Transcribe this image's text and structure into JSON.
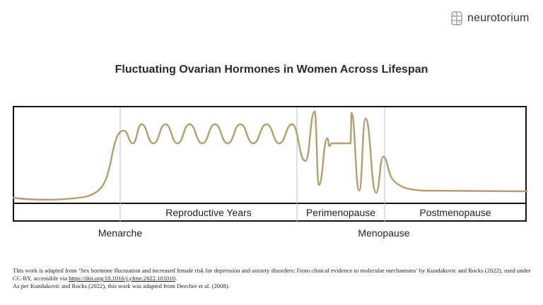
{
  "logo": {
    "text": "neurotorium",
    "icon": "brain-circuit-icon"
  },
  "title": "Fluctuating Ovarian Hormones in Women Across Lifespan",
  "regions": [
    "Reproductive Years",
    "Perimenopause",
    "Postmenopause"
  ],
  "markers": [
    "Menarche",
    "Menopause"
  ],
  "colors": {
    "curve": "#b49d6e",
    "frame": "#111111",
    "divider": "#bbbbbb"
  },
  "caption": {
    "line1": "This work is adapted from ‘Sex hormone fluctuation and increased female risk for depression and anxiety disorders: From clinical evidence to molecular mechanisms’ by Kundakovic and Rocks (2022), used under CC-BY, accessible via ",
    "link": "https://doi.org/10.1016/j.yfrne.2022.101010",
    "line1_end": ".",
    "line2": "As per Kundakovic and Rocks (2022), this work was adapted from Deecher et al. (2008)."
  }
}
